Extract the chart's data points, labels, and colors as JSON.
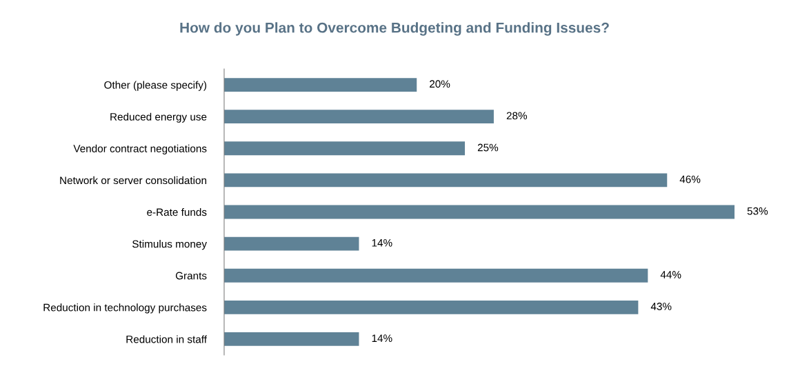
{
  "chart_data": {
    "type": "bar",
    "orientation": "horizontal",
    "title": "How do you Plan to Overcome Budgeting and Funding Issues?",
    "categories": [
      "Other (please specify)",
      "Reduced energy use",
      "Vendor contract negotiations",
      "Network or server consolidation",
      "e-Rate funds",
      "Stimulus money",
      "Grants",
      "Reduction in technology purchases",
      "Reduction in staff"
    ],
    "values": [
      20,
      28,
      25,
      46,
      53,
      14,
      44,
      43,
      14
    ],
    "value_labels": [
      "20%",
      "28%",
      "25%",
      "46%",
      "53%",
      "14%",
      "44%",
      "43%",
      "14%"
    ],
    "color": "#5f8296",
    "tick_labels": "y",
    "grid": false
  }
}
